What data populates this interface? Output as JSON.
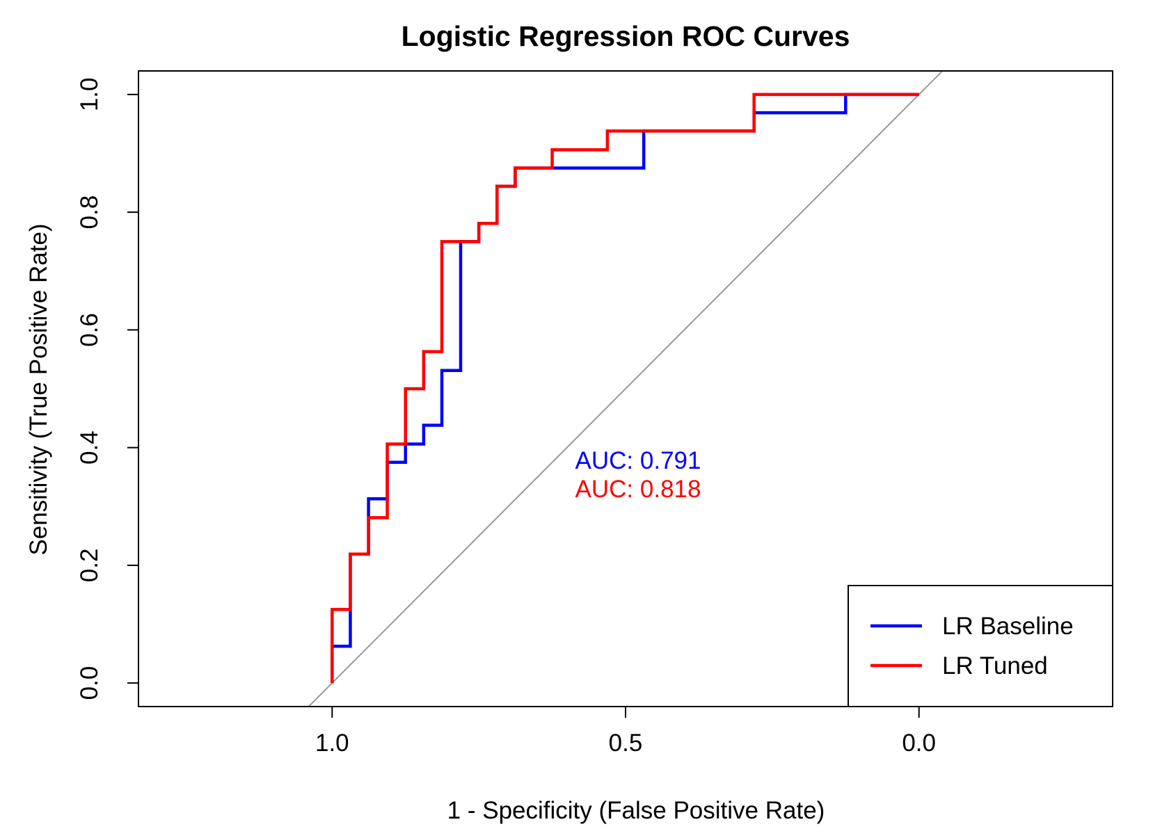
{
  "chart_data": {
    "type": "line",
    "title": "Logistic Regression ROC Curves",
    "xlabel": "1 - Specificity (False Positive Rate)",
    "ylabel": "Sensitivity (True Positive Rate)",
    "xlim": [
      1.33,
      -0.33
    ],
    "ylim": [
      -0.04,
      1.04
    ],
    "x_reversed": true,
    "x_ticks": [
      1.0,
      0.5,
      0.0
    ],
    "x_tick_labels": [
      "1.0",
      "0.5",
      "0.0"
    ],
    "y_ticks": [
      0.0,
      0.2,
      0.4,
      0.6,
      0.8,
      1.0
    ],
    "y_tick_labels": [
      "0.0",
      "0.2",
      "0.4",
      "0.6",
      "0.8",
      "1.0"
    ],
    "grid": false,
    "reference_line": {
      "name": "chance",
      "color": "#999999",
      "from": [
        1.0,
        0.0
      ],
      "to": [
        0.0,
        1.0
      ]
    },
    "series": [
      {
        "name": "LR Baseline",
        "color": "#0000ff",
        "auc_label": "AUC: 0.791",
        "x": [
          1.0,
          1.0,
          0.969,
          0.969,
          0.938,
          0.938,
          0.906,
          0.906,
          0.875,
          0.875,
          0.844,
          0.844,
          0.813,
          0.813,
          0.781,
          0.781,
          0.75,
          0.75,
          0.719,
          0.719,
          0.688,
          0.688,
          0.469,
          0.469,
          0.281,
          0.281,
          0.125,
          0.125,
          0.0
        ],
        "y": [
          0.0,
          0.0625,
          0.0625,
          0.219,
          0.219,
          0.313,
          0.313,
          0.375,
          0.375,
          0.406,
          0.406,
          0.438,
          0.438,
          0.531,
          0.531,
          0.75,
          0.75,
          0.781,
          0.781,
          0.844,
          0.844,
          0.875,
          0.875,
          0.938,
          0.938,
          0.969,
          0.969,
          1.0,
          1.0
        ]
      },
      {
        "name": "LR Tuned",
        "color": "#ff0000",
        "auc_label": "AUC: 0.818",
        "x": [
          1.0,
          1.0,
          0.969,
          0.969,
          0.938,
          0.938,
          0.906,
          0.906,
          0.875,
          0.875,
          0.844,
          0.844,
          0.813,
          0.813,
          0.75,
          0.75,
          0.719,
          0.719,
          0.688,
          0.688,
          0.625,
          0.625,
          0.531,
          0.531,
          0.281,
          0.281,
          0.0
        ],
        "y": [
          0.0,
          0.125,
          0.125,
          0.219,
          0.219,
          0.281,
          0.281,
          0.406,
          0.406,
          0.5,
          0.5,
          0.563,
          0.563,
          0.75,
          0.75,
          0.781,
          0.781,
          0.844,
          0.844,
          0.875,
          0.875,
          0.906,
          0.906,
          0.938,
          0.938,
          1.0,
          1.0
        ]
      }
    ],
    "legend": {
      "position": "bottom-right",
      "entries": [
        "LR Baseline",
        "LR Tuned"
      ]
    }
  }
}
